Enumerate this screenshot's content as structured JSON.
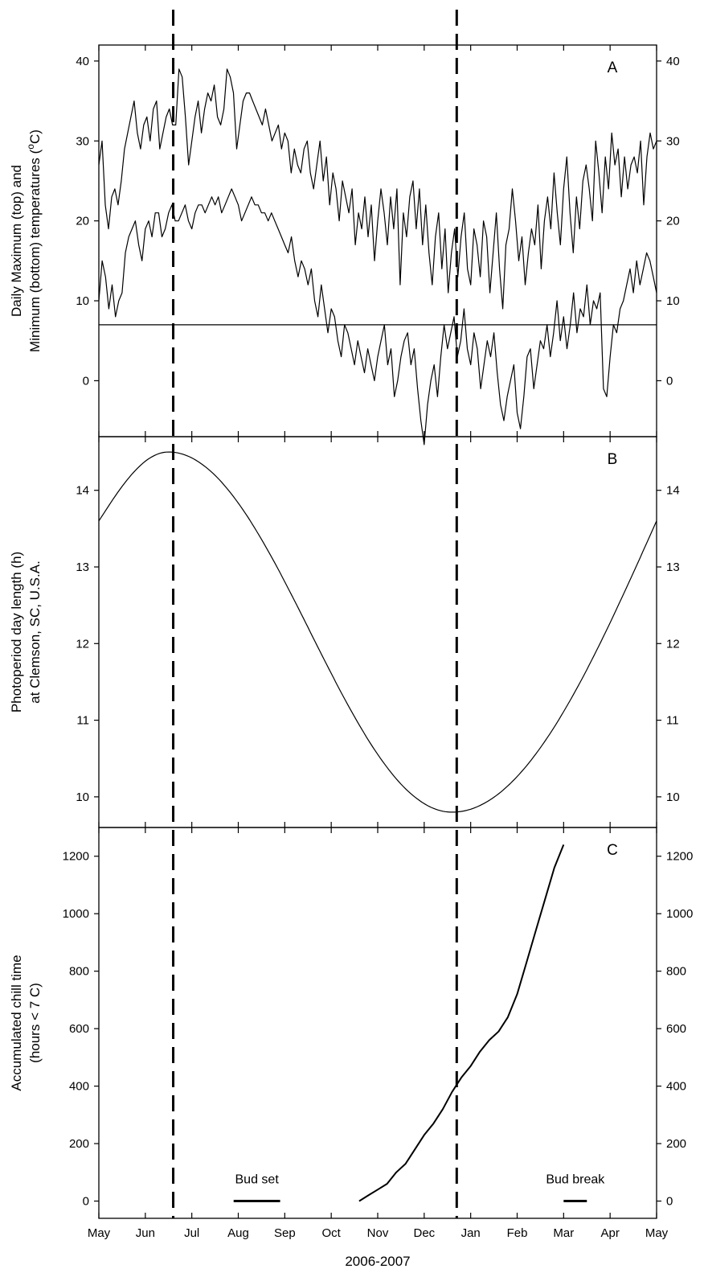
{
  "chart_data": [
    {
      "panel": "A",
      "type": "line",
      "ylabel_lines": [
        "Daily Maximum (top) and",
        "Minimum (bottom) temperatures (",
        "o",
        "C)"
      ],
      "ylim": [
        -7,
        42
      ],
      "yticks": [
        0,
        10,
        20,
        30,
        40
      ],
      "reference_line_y": 7,
      "series": [
        {
          "values": [
            27,
            30,
            22,
            19,
            23,
            24,
            22,
            25,
            29,
            31,
            33,
            35,
            31,
            29,
            32,
            33,
            30,
            34,
            35,
            29,
            31,
            33,
            34,
            32,
            32,
            39,
            38,
            33,
            27,
            30,
            33,
            35,
            31,
            34,
            36,
            35,
            37,
            33,
            32,
            34,
            39,
            38,
            36,
            29,
            32,
            35,
            36,
            36,
            35,
            34,
            33,
            32,
            34,
            32,
            30,
            31,
            32,
            29,
            31,
            30,
            26,
            29,
            27,
            26,
            29,
            30,
            26,
            24,
            27,
            30,
            25,
            28,
            22,
            26,
            24,
            20,
            25,
            23,
            21,
            24,
            17,
            21,
            19,
            23,
            18,
            22,
            15,
            20,
            24,
            21,
            17,
            23,
            19,
            24,
            12,
            21,
            18,
            23,
            25,
            19,
            24,
            17,
            22,
            16,
            12,
            18,
            21,
            14,
            19,
            11,
            16,
            19,
            13,
            18,
            21,
            14,
            12,
            19,
            17,
            13,
            20,
            18,
            11,
            16,
            21,
            14,
            9,
            17,
            19,
            24,
            20,
            15,
            18,
            12,
            16,
            19,
            17,
            22,
            14,
            20,
            23,
            19,
            26,
            21,
            17,
            24,
            28,
            21,
            16,
            23,
            19,
            25,
            27,
            24,
            20,
            30,
            26,
            21,
            28,
            24,
            31,
            27,
            29,
            23,
            28,
            24,
            27,
            28,
            26,
            30,
            22,
            28,
            31,
            29,
            30
          ]
        },
        {
          "values": [
            10,
            15,
            13,
            9,
            12,
            8,
            10,
            11,
            16,
            18,
            19,
            20,
            17,
            15,
            19,
            20,
            18,
            21,
            21,
            18,
            19,
            21,
            22,
            20,
            20,
            21,
            22,
            20,
            19,
            21,
            22,
            22,
            21,
            22,
            23,
            22,
            23,
            21,
            22,
            23,
            24,
            23,
            22,
            20,
            21,
            22,
            23,
            22,
            22,
            21,
            21,
            20,
            21,
            20,
            19,
            18,
            17,
            16,
            18,
            15,
            13,
            15,
            14,
            12,
            14,
            10,
            8,
            12,
            9,
            6,
            9,
            8,
            5,
            3,
            7,
            6,
            4,
            2,
            5,
            3,
            1,
            4,
            2,
            0,
            3,
            5,
            7,
            2,
            4,
            -2,
            0,
            3,
            5,
            6,
            2,
            4,
            -1,
            -5,
            -8,
            -3,
            0,
            2,
            -2,
            3,
            7,
            4,
            6,
            8,
            3,
            5,
            9,
            4,
            2,
            6,
            4,
            -1,
            2,
            5,
            3,
            6,
            1,
            -3,
            -5,
            -2,
            0,
            2,
            -4,
            -6,
            -2,
            3,
            4,
            -1,
            2,
            5,
            4,
            7,
            3,
            6,
            10,
            5,
            8,
            4,
            7,
            11,
            6,
            9,
            8,
            12,
            7,
            10,
            9,
            11,
            -1,
            -2,
            3,
            7,
            6,
            9,
            10,
            12,
            14,
            11,
            15,
            12,
            14,
            16,
            15,
            13,
            11
          ]
        }
      ]
    },
    {
      "panel": "B",
      "type": "line",
      "ylabel_lines": [
        "Photoperiod day length (h)",
        "at Clemson, SC, U.S.A."
      ],
      "ylim": [
        9.6,
        14.7
      ],
      "yticks": [
        10,
        11,
        12,
        13,
        14
      ],
      "series": [
        {
          "x_month": [
            0,
            1.5,
            7.6,
            12
          ],
          "values": [
            13.6,
            14.5,
            9.8,
            13.6
          ]
        }
      ]
    },
    {
      "panel": "C",
      "type": "line",
      "ylabel_lines": [
        "Accumulated chill time",
        "(hours < 7 C)"
      ],
      "ylim": [
        -60,
        1300
      ],
      "yticks": [
        0,
        200,
        400,
        600,
        800,
        1000,
        1200
      ],
      "series": [
        {
          "x_month": [
            5.6,
            5.8,
            6.0,
            6.2,
            6.4,
            6.6,
            6.8,
            7.0,
            7.2,
            7.4,
            7.6,
            7.8,
            8.0,
            8.2,
            8.4,
            8.6,
            8.8,
            9.0,
            9.2,
            9.4,
            9.6,
            9.8,
            10.0
          ],
          "values": [
            0,
            20,
            40,
            60,
            100,
            130,
            180,
            230,
            270,
            320,
            380,
            430,
            470,
            520,
            560,
            590,
            640,
            720,
            830,
            940,
            1050,
            1160,
            1240
          ]
        }
      ],
      "annotations": [
        {
          "text": "Bud set",
          "x_start_month": 2.9,
          "x_end_month": 3.9,
          "y": 0
        },
        {
          "text": "Bud break",
          "x_start_month": 10.0,
          "x_end_month": 10.5,
          "y": 0
        }
      ]
    }
  ],
  "x_tick_labels": [
    "May",
    "Jun",
    "Jul",
    "Aug",
    "Sep",
    "Oct",
    "Nov",
    "Dec",
    "Jan",
    "Feb",
    "Mar",
    "Apr",
    "May"
  ],
  "xlabel": "2006-2007",
  "vertical_reference_months": [
    1.6,
    7.7
  ],
  "panel_letters": [
    "A",
    "B",
    "C"
  ],
  "x_range_months": [
    0,
    12
  ]
}
